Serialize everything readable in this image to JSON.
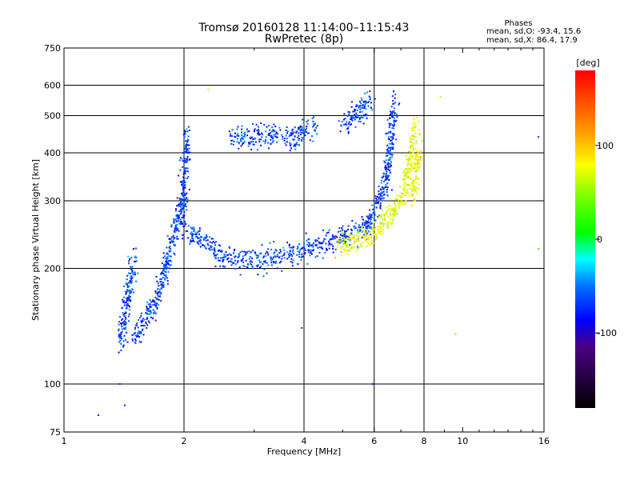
{
  "chart_data": {
    "type": "scatter",
    "title": "Tromsø 20160128 11:14:00–11:15:43",
    "subtitle": "RwPretec (8p)",
    "xlabel": "Frequency [MHz]",
    "ylabel": "Stationary phase Virtual Height [km]",
    "xscale": "log",
    "yscale": "log",
    "xlim": [
      1,
      16
    ],
    "ylim": [
      75,
      750
    ],
    "x_ticks": [
      1,
      2,
      4,
      6,
      8,
      10,
      16
    ],
    "x_tick_labels": [
      "1",
      "2",
      "4",
      "6",
      "8",
      "10",
      "16"
    ],
    "x_grid": [
      2,
      4,
      6,
      8
    ],
    "y_ticks": [
      75,
      100,
      200,
      300,
      400,
      500,
      600,
      750
    ],
    "y_tick_labels": [
      "75",
      "100",
      "200",
      "300",
      "400",
      "500",
      "600",
      "750"
    ],
    "y_grid": [
      100,
      200,
      300,
      400,
      500,
      600
    ],
    "legend": {
      "title": "Phases",
      "line1": "mean, sd,O: -93.4, 15.6",
      "line2": "mean, sd,X:  86.4, 17.9"
    },
    "colorbar": {
      "label": "[deg]",
      "range": [
        -180,
        180
      ],
      "ticks": [
        100,
        0,
        -100
      ],
      "tick_labels": [
        "100",
        "0",
        "-100"
      ]
    },
    "series": [
      {
        "name": "O-mode",
        "mean_phase": -93.4,
        "sd_phase": 15.6,
        "segments": [
          {
            "f": [
              1.38,
              1.5
            ],
            "h": [
              125,
              215
            ]
          },
          {
            "f": [
              1.5,
              1.75
            ],
            "h": [
              130,
              175
            ]
          },
          {
            "f": [
              1.75,
              1.98
            ],
            "h": [
              180,
              300
            ]
          },
          {
            "f": [
              1.98,
              2.03
            ],
            "h": [
              250,
              450
            ]
          },
          {
            "f": [
              2.05,
              2.4
            ],
            "h": [
              250,
              225
            ]
          },
          {
            "f": [
              2.4,
              3.2
            ],
            "h": [
              215,
              210
            ]
          },
          {
            "f": [
              3.2,
              4.5
            ],
            "h": [
              212,
              230
            ]
          },
          {
            "f": [
              4.5,
              5.8
            ],
            "h": [
              232,
              260
            ]
          },
          {
            "f": [
              5.8,
              6.4
            ],
            "h": [
              260,
              330
            ]
          },
          {
            "f": [
              6.4,
              6.8
            ],
            "h": [
              330,
              560
            ]
          },
          {
            "f": [
              2.6,
              3.6
            ],
            "h": [
              440,
              450
            ]
          },
          {
            "f": [
              3.6,
              4.3
            ],
            "h": [
              430,
              470
            ]
          },
          {
            "f": [
              5.0,
              5.9
            ],
            "h": [
              470,
              550
            ]
          }
        ]
      },
      {
        "name": "X-mode",
        "mean_phase": 86.4,
        "sd_phase": 17.9,
        "segments": [
          {
            "f": [
              4.8,
              5.9
            ],
            "h": [
              230,
              245
            ]
          },
          {
            "f": [
              5.9,
              6.6
            ],
            "h": [
              245,
              275
            ]
          },
          {
            "f": [
              6.6,
              7.2
            ],
            "h": [
              275,
              320
            ]
          },
          {
            "f": [
              7.2,
              7.6
            ],
            "h": [
              320,
              480
            ]
          },
          {
            "f": [
              7.5,
              7.8
            ],
            "h": [
              300,
              420
            ]
          }
        ]
      }
    ],
    "outliers": [
      {
        "f": 1.22,
        "h": 83,
        "phase": -100
      },
      {
        "f": 1.42,
        "h": 88,
        "phase": -100
      },
      {
        "f": 1.38,
        "h": 100,
        "phase": -100
      },
      {
        "f": 2.3,
        "h": 585,
        "phase": 110
      },
      {
        "f": 3.95,
        "h": 140,
        "phase": -100
      },
      {
        "f": 5.95,
        "h": 100,
        "phase": -100
      },
      {
        "f": 9.6,
        "h": 135,
        "phase": 120
      },
      {
        "f": 15.5,
        "h": 440,
        "phase": -100
      },
      {
        "f": 15.5,
        "h": 225,
        "phase": 20
      },
      {
        "f": 8.8,
        "h": 560,
        "phase": 110
      }
    ]
  }
}
